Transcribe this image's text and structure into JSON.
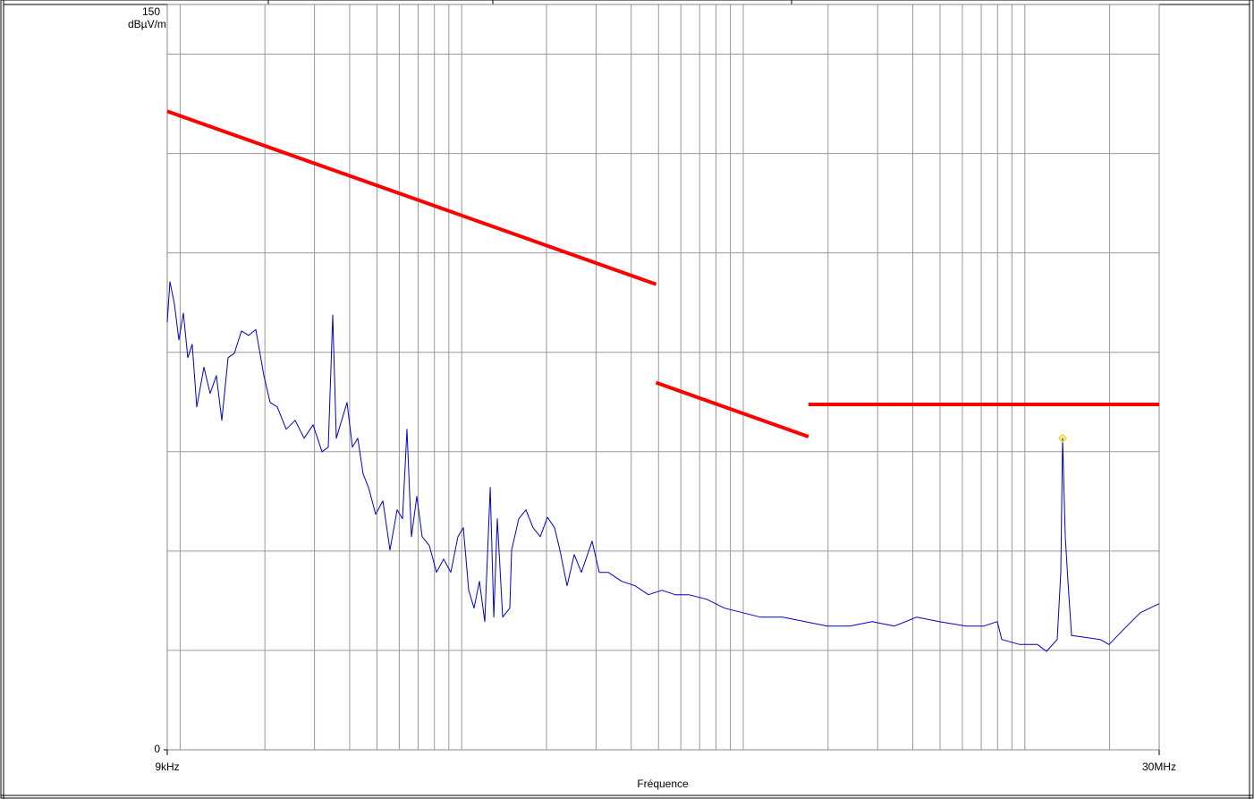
{
  "chart_data": {
    "type": "line",
    "y_label": "dBµV/m",
    "x_label": "Fréquence",
    "xlim": [
      9000,
      30000000
    ],
    "ylim": [
      0,
      150
    ],
    "log_x": true,
    "grid": true,
    "xticks": [
      {
        "value": 9000,
        "label": "9kHz"
      },
      {
        "value": 30000000,
        "label": "30MHz"
      }
    ],
    "yticks": [
      0,
      150
    ],
    "xgrid": [
      10000,
      20000,
      30000,
      40000,
      50000,
      60000,
      70000,
      80000,
      90000,
      100000,
      200000,
      300000,
      400000,
      500000,
      600000,
      700000,
      800000,
      900000,
      1000000,
      2000000,
      3000000,
      4000000,
      5000000,
      6000000,
      7000000,
      8000000,
      9000000,
      10000000,
      20000000
    ],
    "ygrid": [
      20,
      40,
      60,
      80,
      100,
      120,
      140
    ],
    "series": [
      {
        "color": "#ff0000",
        "x": [
          9000,
          490000
        ],
        "values": [
          128.5,
          93.7
        ]
      },
      {
        "color": "#ff0000",
        "x": [
          490000,
          1705000
        ],
        "values": [
          73.9,
          63
        ]
      },
      {
        "color": "#ff0000",
        "x": [
          1705000,
          30000000
        ],
        "values": [
          69.5,
          69.5
        ]
      },
      {
        "color": "#0000cc",
        "x": [
          9000,
          9200,
          9540,
          9900,
          10270,
          10650,
          11040,
          11460,
          12150,
          12780,
          13450,
          14060,
          14800,
          15580,
          16510,
          17510,
          18570,
          19830,
          20870,
          22130,
          23810,
          25620,
          27560,
          29650,
          31900,
          33580,
          34830,
          35870,
          37480,
          39150,
          40900,
          42740,
          44660,
          46670,
          49480,
          52490,
          55620,
          58980,
          61620,
          63910,
          66290,
          69270,
          72380,
          76730,
          81370,
          86270,
          91450,
          97000,
          101300,
          105900,
          110600,
          115600,
          120800,
          126300,
          130000,
          133800,
          139800,
          148200,
          150400,
          159500,
          169100,
          179300,
          190100,
          201600,
          213700,
          223300,
          236700,
          251000,
          266100,
          290500,
          308000,
          331500,
          369800,
          412700,
          460500,
          514000,
          573600,
          640100,
          741000,
          857500,
          992700,
          1149000,
          1380000,
          1657000,
          1989000,
          2389000,
          2867000,
          3443000,
          4133000,
          4962000,
          6180000,
          7154000,
          7984000,
          8281000,
          9585000,
          11090000,
          11940000,
          13030000,
          13420000,
          13620000,
          13920000,
          14230000,
          14650000,
          15990000,
          18510000,
          19920000,
          22230000,
          25720000,
          30000000
        ],
        "values": [
          86,
          94.2,
          89.7,
          82.5,
          87.9,
          78.9,
          81.6,
          69,
          77,
          71.7,
          75.3,
          66.3,
          78.9,
          79.8,
          84.3,
          83.4,
          84.6,
          75.3,
          69.9,
          69,
          64.5,
          66.3,
          62.7,
          65.4,
          60,
          60.9,
          87.5,
          62.7,
          66.3,
          69.9,
          60.9,
          62.7,
          55.5,
          52.8,
          47.4,
          50.1,
          40.2,
          48.3,
          46.5,
          64.5,
          42.9,
          51,
          42.9,
          41.1,
          35.7,
          38.4,
          35.7,
          42.9,
          44.7,
          32.1,
          28.5,
          33.9,
          25.8,
          52.8,
          26.7,
          46.5,
          26.7,
          28.5,
          40.2,
          46.5,
          48.3,
          44.7,
          42.9,
          46.8,
          44.7,
          40.2,
          33,
          39.3,
          35.7,
          42,
          35.7,
          35.7,
          33.9,
          33,
          31.2,
          32.1,
          31.2,
          31.2,
          30.3,
          28.5,
          27.6,
          26.7,
          26.7,
          25.8,
          24.9,
          24.9,
          25.8,
          24.9,
          26.7,
          25.8,
          24.9,
          24.9,
          25.8,
          22.2,
          21.2,
          21.2,
          19.8,
          22.2,
          35.7,
          62.7,
          42.9,
          33.9,
          23,
          22.7,
          22.2,
          21.2,
          24,
          27.6,
          29.4
        ]
      }
    ],
    "marker": {
      "x": 13620000,
      "y": 62.7,
      "color": "#ffd700"
    }
  }
}
